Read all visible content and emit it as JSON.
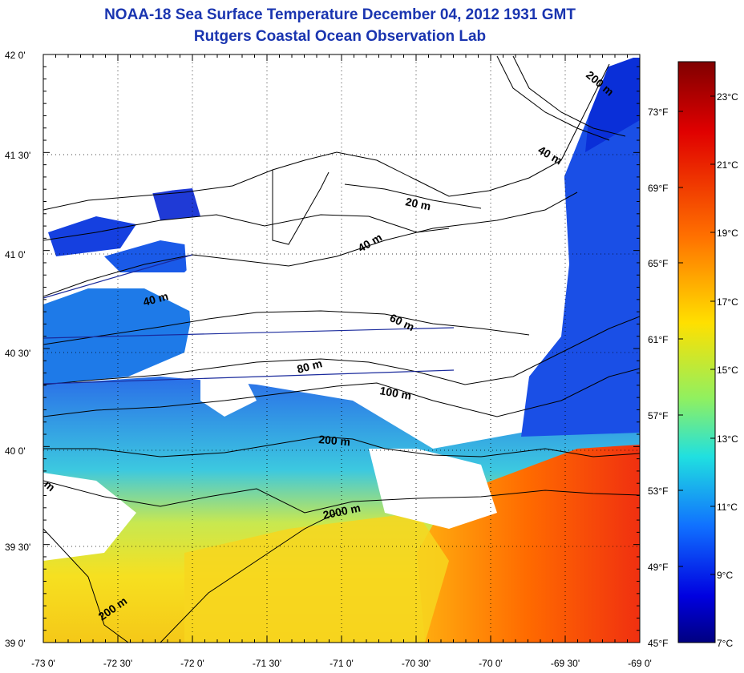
{
  "header": {
    "title": "NOAA-18 Sea Surface Temperature December 04, 2012 1931 GMT",
    "subtitle": "Rutgers Coastal Ocean Observation Lab"
  },
  "map": {
    "lat_labels": [
      "42 0'",
      "41 30'",
      "41 0'",
      "40 30'",
      "40 0'",
      "39 30'",
      "39 0'"
    ],
    "lon_labels": [
      "-73 0'",
      "-72 30'",
      "-72 0'",
      "-71 30'",
      "-71 0'",
      "-70 30'",
      "-70 0'",
      "-69 30'",
      "-69 0'"
    ],
    "contour_labels": [
      "200 m",
      "40 m",
      "20 m",
      "40 m",
      "40 m",
      "60 m",
      "80 m",
      "100 m",
      "200 m",
      "2000 m",
      "200 m",
      "m"
    ]
  },
  "colorbar": {
    "celsius_labels": [
      "23°C",
      "21°C",
      "19°C",
      "17°C",
      "15°C",
      "13°C",
      "11°C",
      "9°C",
      "7°C"
    ],
    "fahrenheit_labels": [
      "73°F",
      "69°F",
      "65°F",
      "61°F",
      "57°F",
      "53°F",
      "49°F",
      "45°F"
    ],
    "colors": [
      "#800000",
      "#ff0000",
      "#ff8000",
      "#ffff00",
      "#80ff80",
      "#00ffff",
      "#0080ff",
      "#0000ff",
      "#000080"
    ]
  }
}
